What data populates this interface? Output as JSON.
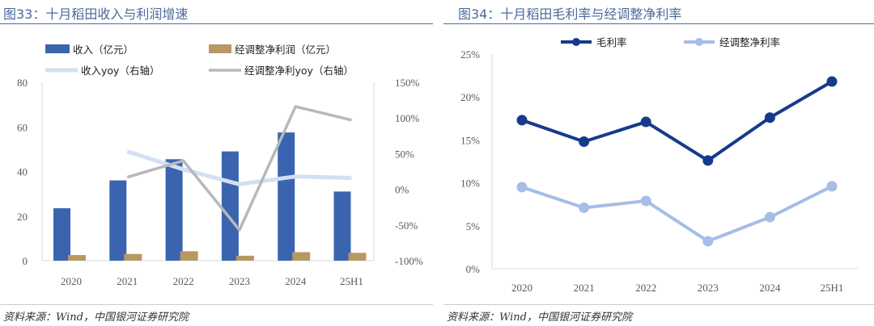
{
  "chart_data": [
    {
      "type": "bar",
      "title": "图33：十月稻田收入与利润增速",
      "categories": [
        "2020",
        "2021",
        "2022",
        "2023",
        "2024",
        "25H1"
      ],
      "ylim": [
        0,
        80
      ],
      "yticks": [
        "0",
        "20",
        "40",
        "60",
        "80"
      ],
      "y2lim": [
        -100,
        150
      ],
      "y2ticks": [
        "-100%",
        "-50%",
        "0%",
        "50%",
        "100%",
        "150%"
      ],
      "series": [
        {
          "name": "收入（亿元）",
          "kind": "bar",
          "axis": "left",
          "color": "#3a64b0",
          "values": [
            23.5,
            36,
            45.5,
            49,
            57.5,
            31
          ]
        },
        {
          "name": "经调整净利润（亿元）",
          "kind": "bar",
          "axis": "left",
          "color": "#b99763",
          "values": [
            2.5,
            3,
            4.2,
            2.2,
            3.8,
            3.5
          ]
        },
        {
          "name": "收入yoy（右轴）",
          "kind": "line",
          "axis": "right",
          "color": "#d3dff2",
          "values": [
            null,
            53,
            28,
            7,
            18,
            16
          ]
        },
        {
          "name": "经调整净利yoy（右轴）",
          "kind": "line",
          "axis": "right",
          "color": "#b8b8b8",
          "values": [
            null,
            17,
            40,
            -57,
            116,
            97
          ]
        }
      ]
    },
    {
      "type": "line",
      "title": "图34：十月稻田毛利率与经调整净利率",
      "categories": [
        "2020",
        "2021",
        "2022",
        "2023",
        "2024",
        "25H1"
      ],
      "ylim": [
        0,
        25
      ],
      "yticks": [
        "0%",
        "5%",
        "10%",
        "15%",
        "20%",
        "25%"
      ],
      "series": [
        {
          "name": "毛利率",
          "color": "#163a8c",
          "values": [
            17.3,
            14.8,
            17.1,
            12.6,
            17.6,
            21.8
          ]
        },
        {
          "name": "经调整净利率",
          "color": "#a7bde6",
          "values": [
            9.5,
            7.1,
            7.9,
            3.2,
            6.0,
            9.6
          ]
        }
      ]
    }
  ],
  "source": "资料来源：Wind，中国银河证券研究院"
}
